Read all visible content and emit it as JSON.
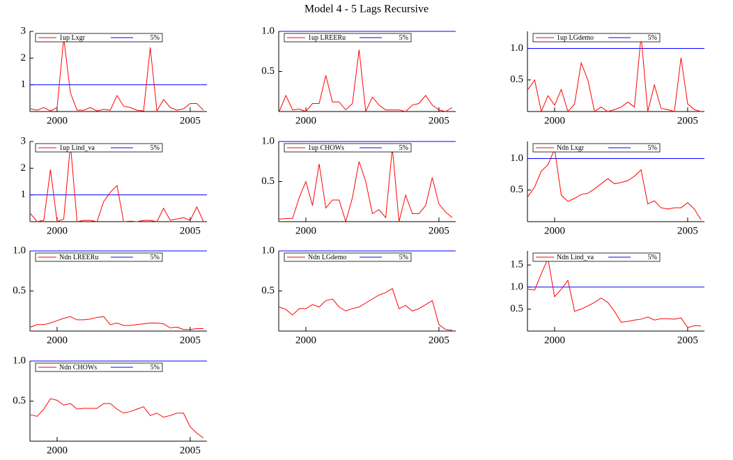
{
  "title": "Model 4 - 5 Lags Recursive",
  "chart_data": [
    {
      "type": "line",
      "x": [
        1999,
        1999.25,
        1999.5,
        1999.75,
        2000,
        2000.25,
        2000.5,
        2000.75,
        2001,
        2001.25,
        2001.5,
        2001.75,
        2002,
        2002.25,
        2002.5,
        2002.75,
        2003,
        2003.25,
        2003.5,
        2003.75,
        2004,
        2004.25,
        2004.5,
        2004.75,
        2005,
        2005.25,
        2005.5
      ],
      "series": [
        {
          "name": "1up Lxgr",
          "color": "#ff0000",
          "values": [
            0.1,
            0.05,
            0.15,
            0.02,
            0.15,
            2.75,
            0.7,
            0.05,
            0.05,
            0.15,
            0.02,
            0.08,
            0.05,
            0.6,
            0.2,
            0.15,
            0.05,
            0.02,
            2.4,
            0.02,
            0.45,
            0.15,
            0.05,
            0.1,
            0.3,
            0.3,
            0.05
          ]
        }
      ],
      "reference": {
        "name": "5%",
        "color": "#0000ff",
        "value": 1
      },
      "xlim": [
        1998.98,
        2005.63
      ],
      "xticks": [
        2000,
        2005
      ],
      "ylim": [
        0,
        3
      ],
      "yticks": [
        1,
        2,
        3
      ]
    },
    {
      "type": "line",
      "x": [
        1999,
        1999.25,
        1999.5,
        1999.75,
        2000,
        2000.25,
        2000.5,
        2000.75,
        2001,
        2001.25,
        2001.5,
        2001.75,
        2002,
        2002.25,
        2002.5,
        2002.75,
        2003,
        2003.25,
        2003.5,
        2003.75,
        2004,
        2004.25,
        2004.5,
        2004.75,
        2005,
        2005.25,
        2005.5
      ],
      "series": [
        {
          "name": "1up LREERu",
          "color": "#ff0000",
          "values": [
            0.0,
            0.2,
            0.02,
            0.03,
            0.0,
            0.1,
            0.1,
            0.45,
            0.12,
            0.12,
            0.02,
            0.1,
            0.77,
            0.0,
            0.18,
            0.08,
            0.02,
            0.02,
            0.02,
            0.0,
            0.08,
            0.1,
            0.2,
            0.08,
            0.02,
            0.0,
            0.05
          ]
        }
      ],
      "reference": {
        "name": "5%",
        "color": "#0000ff",
        "value": 1
      },
      "xlim": [
        1998.98,
        2005.63
      ],
      "xticks": [
        2000,
        2005
      ],
      "ylim": [
        0,
        1
      ],
      "yticks": [
        0.5,
        {
          "value": 1,
          "label": "1.0"
        }
      ]
    },
    {
      "type": "line",
      "x": [
        1999,
        1999.25,
        1999.5,
        1999.75,
        2000,
        2000.25,
        2000.5,
        2000.75,
        2001,
        2001.25,
        2001.5,
        2001.75,
        2002,
        2002.25,
        2002.5,
        2002.75,
        2003,
        2003.25,
        2003.5,
        2003.75,
        2004,
        2004.25,
        2004.5,
        2004.75,
        2005,
        2005.25,
        2005.5
      ],
      "series": [
        {
          "name": "1up LGdemo",
          "color": "#ff0000",
          "values": [
            0.35,
            0.5,
            0.0,
            0.25,
            0.1,
            0.35,
            0.0,
            0.12,
            0.77,
            0.5,
            0.0,
            0.07,
            0.0,
            0.03,
            0.07,
            0.15,
            0.07,
            1.2,
            0.0,
            0.42,
            0.05,
            0.03,
            0.0,
            0.85,
            0.12,
            0.03,
            0.0
          ]
        }
      ],
      "reference": {
        "name": "5%",
        "color": "#0000ff",
        "value": 1
      },
      "xlim": [
        1998.98,
        2005.63
      ],
      "xticks": [
        2000,
        2005
      ],
      "ylim": [
        0,
        1.27
      ],
      "yticks": [
        0.5,
        {
          "value": 1,
          "label": "1.0"
        }
      ]
    },
    {
      "type": "line",
      "x": [
        1999,
        1999.25,
        1999.5,
        1999.75,
        2000,
        2000.25,
        2000.5,
        2000.75,
        2001,
        2001.25,
        2001.5,
        2001.75,
        2002,
        2002.25,
        2002.5,
        2002.75,
        2003,
        2003.25,
        2003.5,
        2003.75,
        2004,
        2004.25,
        2004.5,
        2004.75,
        2005,
        2005.25,
        2005.5
      ],
      "series": [
        {
          "name": "1up Lind_va",
          "color": "#ff0000",
          "values": [
            0.3,
            0.0,
            0.05,
            1.95,
            0.0,
            0.1,
            2.9,
            0.0,
            0.05,
            0.05,
            0.0,
            0.75,
            1.1,
            1.35,
            0.0,
            0.02,
            0.0,
            0.05,
            0.05,
            0.0,
            0.5,
            0.05,
            0.1,
            0.15,
            0.05,
            0.55,
            0.0
          ]
        }
      ],
      "reference": {
        "name": "5%",
        "color": "#0000ff",
        "value": 1
      },
      "xlim": [
        1998.98,
        2005.63
      ],
      "xticks": [
        2000,
        2005
      ],
      "ylim": [
        0,
        3
      ],
      "yticks": [
        1,
        2,
        3
      ]
    },
    {
      "type": "line",
      "x": [
        1999,
        1999.25,
        1999.5,
        1999.75,
        2000,
        2000.25,
        2000.5,
        2000.75,
        2001,
        2001.25,
        2001.5,
        2001.75,
        2002,
        2002.25,
        2002.5,
        2002.75,
        2003,
        2003.25,
        2003.5,
        2003.75,
        2004,
        2004.25,
        2004.5,
        2004.75,
        2005,
        2005.25,
        2005.5
      ],
      "series": [
        {
          "name": "1up CHOWs",
          "color": "#ff0000",
          "values": [
            0.03,
            0.04,
            0.04,
            0.3,
            0.5,
            0.2,
            0.72,
            0.17,
            0.27,
            0.27,
            0.0,
            0.3,
            0.75,
            0.5,
            0.1,
            0.15,
            0.05,
            0.92,
            0.0,
            0.33,
            0.1,
            0.1,
            0.2,
            0.55,
            0.22,
            0.12,
            0.05
          ]
        }
      ],
      "reference": {
        "name": "5%",
        "color": "#0000ff",
        "value": 1
      },
      "xlim": [
        1998.98,
        2005.63
      ],
      "xticks": [
        2000,
        2005
      ],
      "ylim": [
        0,
        1
      ],
      "yticks": [
        0.5,
        {
          "value": 1,
          "label": "1.0"
        }
      ]
    },
    {
      "type": "line",
      "x": [
        1999,
        1999.25,
        1999.5,
        1999.75,
        2000,
        2000.25,
        2000.5,
        2000.75,
        2001,
        2001.25,
        2001.5,
        2001.75,
        2002,
        2002.25,
        2002.5,
        2002.75,
        2003,
        2003.25,
        2003.5,
        2003.75,
        2004,
        2004.25,
        2004.5,
        2004.75,
        2005,
        2005.25,
        2005.5
      ],
      "series": [
        {
          "name": "Ndn Lxgr",
          "color": "#ff0000",
          "values": [
            0.4,
            0.55,
            0.8,
            0.9,
            1.15,
            0.42,
            0.32,
            0.37,
            0.43,
            0.45,
            0.52,
            0.6,
            0.68,
            0.6,
            0.62,
            0.65,
            0.72,
            0.82,
            0.28,
            0.33,
            0.22,
            0.2,
            0.22,
            0.22,
            0.3,
            0.2,
            0.03
          ]
        }
      ],
      "reference": {
        "name": "5%",
        "color": "#0000ff",
        "value": 1
      },
      "xlim": [
        1998.98,
        2005.63
      ],
      "xticks": [
        2000,
        2005
      ],
      "ylim": [
        0,
        1.27
      ],
      "yticks": [
        0.5,
        {
          "value": 1,
          "label": "1.0"
        }
      ]
    },
    {
      "type": "line",
      "x": [
        1999,
        1999.25,
        1999.5,
        1999.75,
        2000,
        2000.25,
        2000.5,
        2000.75,
        2001,
        2001.25,
        2001.5,
        2001.75,
        2002,
        2002.25,
        2002.5,
        2002.75,
        2003,
        2003.25,
        2003.5,
        2003.75,
        2004,
        2004.25,
        2004.5,
        2004.75,
        2005,
        2005.25,
        2005.5
      ],
      "series": [
        {
          "name": "Ndn LREERu",
          "color": "#ff0000",
          "values": [
            0.05,
            0.08,
            0.08,
            0.1,
            0.13,
            0.16,
            0.18,
            0.14,
            0.14,
            0.15,
            0.17,
            0.18,
            0.08,
            0.1,
            0.07,
            0.07,
            0.08,
            0.09,
            0.1,
            0.1,
            0.09,
            0.04,
            0.05,
            0.02,
            0.02,
            0.03,
            0.03
          ]
        }
      ],
      "reference": {
        "name": "5%",
        "color": "#0000ff",
        "value": 1
      },
      "xlim": [
        1998.98,
        2005.63
      ],
      "xticks": [
        2000,
        2005
      ],
      "ylim": [
        0,
        1
      ],
      "yticks": [
        0.5,
        {
          "value": 1,
          "label": "1.0"
        }
      ]
    },
    {
      "type": "line",
      "x": [
        1999,
        1999.25,
        1999.5,
        1999.75,
        2000,
        2000.25,
        2000.5,
        2000.75,
        2001,
        2001.25,
        2001.5,
        2001.75,
        2002,
        2002.25,
        2002.5,
        2002.75,
        2003,
        2003.25,
        2003.5,
        2003.75,
        2004,
        2004.25,
        2004.5,
        2004.75,
        2005,
        2005.25,
        2005.5
      ],
      "series": [
        {
          "name": "Ndn LGdemo",
          "color": "#ff0000",
          "values": [
            0.3,
            0.27,
            0.2,
            0.28,
            0.28,
            0.33,
            0.3,
            0.38,
            0.4,
            0.3,
            0.25,
            0.28,
            0.3,
            0.35,
            0.4,
            0.45,
            0.48,
            0.53,
            0.28,
            0.32,
            0.25,
            0.28,
            0.33,
            0.38,
            0.08,
            0.02,
            0.01
          ]
        }
      ],
      "reference": {
        "name": "5%",
        "color": "#0000ff",
        "value": 1
      },
      "xlim": [
        1998.98,
        2005.63
      ],
      "xticks": [
        2000,
        2005
      ],
      "ylim": [
        0,
        1
      ],
      "yticks": [
        0.5,
        {
          "value": 1,
          "label": "1.0"
        }
      ]
    },
    {
      "type": "line",
      "x": [
        1999,
        1999.25,
        1999.5,
        1999.75,
        2000,
        2000.25,
        2000.5,
        2000.75,
        2001,
        2001.25,
        2001.5,
        2001.75,
        2002,
        2002.25,
        2002.5,
        2002.75,
        2003,
        2003.25,
        2003.5,
        2003.75,
        2004,
        2004.25,
        2004.5,
        2004.75,
        2005,
        2005.25,
        2005.5
      ],
      "series": [
        {
          "name": "Ndn Lind_va",
          "color": "#ff0000",
          "values": [
            0.95,
            0.93,
            1.3,
            1.65,
            0.78,
            0.95,
            1.15,
            0.45,
            0.5,
            0.57,
            0.65,
            0.75,
            0.65,
            0.45,
            0.2,
            0.22,
            0.25,
            0.27,
            0.32,
            0.25,
            0.28,
            0.28,
            0.27,
            0.3,
            0.08,
            0.12,
            0.12
          ]
        }
      ],
      "reference": {
        "name": "5%",
        "color": "#0000ff",
        "value": 1
      },
      "xlim": [
        1998.98,
        2005.63
      ],
      "xticks": [
        2000,
        2005
      ],
      "ylim": [
        0,
        1.82
      ],
      "yticks": [
        0.5,
        {
          "value": 1,
          "label": "1.0"
        },
        1.5
      ]
    },
    {
      "type": "line",
      "x": [
        1999,
        1999.25,
        1999.5,
        1999.75,
        2000,
        2000.25,
        2000.5,
        2000.75,
        2001,
        2001.25,
        2001.5,
        2001.75,
        2002,
        2002.25,
        2002.5,
        2002.75,
        2003,
        2003.25,
        2003.5,
        2003.75,
        2004,
        2004.25,
        2004.5,
        2004.75,
        2005,
        2005.25,
        2005.5
      ],
      "series": [
        {
          "name": "Ndn CHOWs",
          "color": "#ff0000",
          "values": [
            0.33,
            0.31,
            0.4,
            0.53,
            0.51,
            0.45,
            0.47,
            0.4,
            0.41,
            0.41,
            0.41,
            0.47,
            0.47,
            0.4,
            0.35,
            0.37,
            0.4,
            0.43,
            0.32,
            0.35,
            0.3,
            0.32,
            0.35,
            0.35,
            0.18,
            0.1,
            0.04
          ]
        }
      ],
      "reference": {
        "name": "5%",
        "color": "#0000ff",
        "value": 1
      },
      "xlim": [
        1998.98,
        2005.63
      ],
      "xticks": [
        2000,
        2005
      ],
      "ylim": [
        0,
        1
      ],
      "yticks": [
        0.5,
        {
          "value": 1,
          "label": "1.0"
        }
      ]
    }
  ]
}
